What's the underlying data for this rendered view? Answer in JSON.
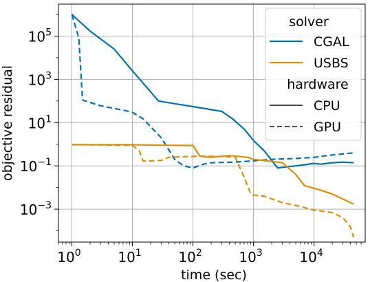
{
  "chart_data": {
    "type": "line",
    "xlabel": "time (sec)",
    "ylabel": "objective residual",
    "xscale": "log",
    "yscale": "log",
    "xlim": [
      0.6,
      70000
    ],
    "ylim": [
      3e-05,
      3000000
    ],
    "grid": true,
    "x_ticks": [
      {
        "value": 1,
        "base": "10",
        "exp": "0"
      },
      {
        "value": 10,
        "base": "10",
        "exp": "1"
      },
      {
        "value": 100,
        "base": "10",
        "exp": "2"
      },
      {
        "value": 1000,
        "base": "10",
        "exp": "3"
      },
      {
        "value": 10000,
        "base": "10",
        "exp": "4"
      }
    ],
    "y_ticks": [
      {
        "value": 0.001,
        "base": "10",
        "exp": "−3"
      },
      {
        "value": 0.1,
        "base": "10",
        "exp": "−1"
      },
      {
        "value": 10,
        "base": "10",
        "exp": "1"
      },
      {
        "value": 1000,
        "base": "10",
        "exp": "3"
      },
      {
        "value": 100000,
        "base": "10",
        "exp": "5"
      }
    ],
    "legend": {
      "placement": "top-right",
      "solver_title": "solver",
      "hardware_title": "hardware",
      "solver_entries": [
        {
          "label": "CGAL",
          "color": "#0173b2"
        },
        {
          "label": "USBS",
          "color": "#de8f05"
        }
      ],
      "hardware_entries": [
        {
          "label": "CPU",
          "dash": "solid"
        },
        {
          "label": "GPU",
          "dash": "dashed"
        }
      ]
    },
    "series": [
      {
        "solver": "CGAL",
        "hardware": "CPU",
        "color": "#0173b2",
        "dash": "solid",
        "points": [
          [
            1,
            1000000
          ],
          [
            2,
            170000
          ],
          [
            5,
            25000
          ],
          [
            10,
            2500
          ],
          [
            27,
            100
          ],
          [
            50,
            75
          ],
          [
            100,
            55
          ],
          [
            300,
            33
          ],
          [
            450,
            15
          ],
          [
            700,
            5
          ],
          [
            1000,
            1.5
          ],
          [
            1500,
            0.5
          ],
          [
            2500,
            0.08
          ],
          [
            5000,
            0.1
          ],
          [
            10000,
            0.13
          ],
          [
            13000,
            0.12
          ],
          [
            20000,
            0.14
          ],
          [
            30000,
            0.15
          ],
          [
            45000,
            0.14
          ]
        ]
      },
      {
        "solver": "CGAL",
        "hardware": "GPU",
        "color": "#0173b2",
        "dash": "dashed",
        "points": [
          [
            1,
            1000000
          ],
          [
            1.3,
            80000
          ],
          [
            1.5,
            110
          ],
          [
            3,
            60
          ],
          [
            8,
            35
          ],
          [
            10,
            30
          ],
          [
            15,
            15
          ],
          [
            30,
            2
          ],
          [
            50,
            0.2
          ],
          [
            70,
            0.1
          ],
          [
            100,
            0.08
          ],
          [
            150,
            0.12
          ],
          [
            200,
            0.14
          ],
          [
            500,
            0.15
          ],
          [
            1000,
            0.17
          ],
          [
            2000,
            0.2
          ],
          [
            5000,
            0.22
          ],
          [
            10000,
            0.25
          ],
          [
            20000,
            0.32
          ],
          [
            45000,
            0.4
          ]
        ]
      },
      {
        "solver": "USBS",
        "hardware": "CPU",
        "color": "#de8f05",
        "dash": "solid",
        "points": [
          [
            1,
            0.95
          ],
          [
            10,
            0.95
          ],
          [
            30,
            0.9
          ],
          [
            100,
            0.88
          ],
          [
            130,
            0.28
          ],
          [
            200,
            0.25
          ],
          [
            400,
            0.3
          ],
          [
            800,
            0.25
          ],
          [
            1000,
            0.2
          ],
          [
            2000,
            0.16
          ],
          [
            3000,
            0.14
          ],
          [
            5000,
            0.04
          ],
          [
            7000,
            0.012
          ],
          [
            12000,
            0.008
          ],
          [
            20000,
            0.005
          ],
          [
            40000,
            0.002
          ],
          [
            45000,
            0.0017
          ]
        ]
      },
      {
        "solver": "USBS",
        "hardware": "GPU",
        "color": "#de8f05",
        "dash": "dashed",
        "points": [
          [
            1,
            0.95
          ],
          [
            10,
            0.9
          ],
          [
            13,
            0.5
          ],
          [
            15,
            0.17
          ],
          [
            20,
            0.17
          ],
          [
            30,
            0.18
          ],
          [
            40,
            0.25
          ],
          [
            80,
            0.27
          ],
          [
            150,
            0.28
          ],
          [
            300,
            0.27
          ],
          [
            500,
            0.25
          ],
          [
            700,
            0.03
          ],
          [
            900,
            0.005
          ],
          [
            1000,
            0.0045
          ],
          [
            1500,
            0.004
          ],
          [
            2000,
            0.003
          ],
          [
            3000,
            0.002
          ],
          [
            5000,
            0.0015
          ],
          [
            10000,
            0.0009
          ],
          [
            20000,
            0.0007
          ],
          [
            30000,
            0.0004
          ],
          [
            40000,
            0.00015
          ],
          [
            45000,
            5e-05
          ]
        ]
      }
    ]
  }
}
